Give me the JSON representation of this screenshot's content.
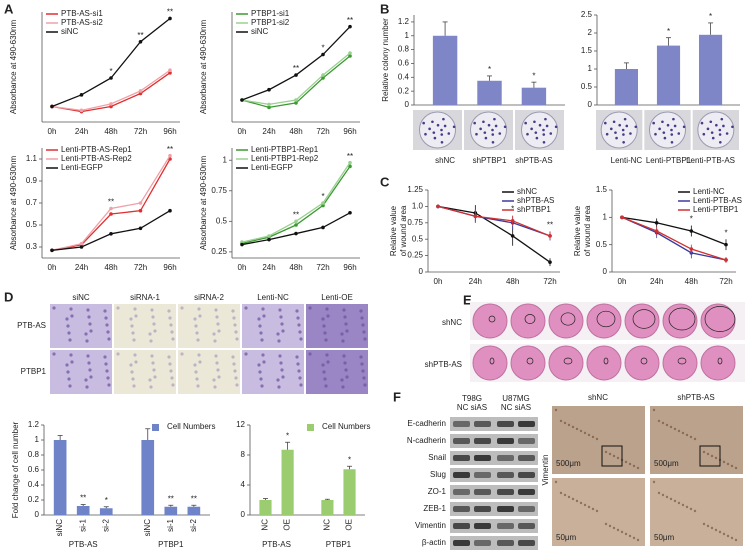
{
  "chart_data": [
    {
      "type": "line",
      "y_label": "Absorbance at 490-630nm",
      "categories": [
        "0h",
        "24h",
        "48h",
        "72h",
        "96h"
      ],
      "ylim": [
        0.15,
        1.0
      ],
      "legend": "upper left",
      "series": [
        {
          "name": "PTB-AS-si1",
          "color": "#e03030",
          "values": [
            0.27,
            0.23,
            0.27,
            0.37,
            0.53
          ]
        },
        {
          "name": "PTB-AS-si2",
          "color": "#f0a0a8",
          "values": [
            0.27,
            0.24,
            0.29,
            0.39,
            0.55
          ]
        },
        {
          "name": "siNC",
          "color": "#111111",
          "values": [
            0.27,
            0.36,
            0.49,
            0.77,
            0.95
          ]
        }
      ],
      "annotations": [
        null,
        null,
        "*",
        "**",
        "**"
      ]
    },
    {
      "type": "line",
      "y_label": "Absorbance at 490-630nm",
      "categories": [
        "0h",
        "24h",
        "48h",
        "72h",
        "96h"
      ],
      "ylim": [
        0.15,
        0.9
      ],
      "legend": "upper left",
      "series": [
        {
          "name": "PTBP1-si1",
          "color": "#3a9a30",
          "values": [
            0.3,
            0.25,
            0.28,
            0.45,
            0.6
          ]
        },
        {
          "name": "PTBP1-si2",
          "color": "#9ad090",
          "values": [
            0.3,
            0.27,
            0.3,
            0.47,
            0.62
          ]
        },
        {
          "name": "siNC",
          "color": "#111111",
          "values": [
            0.3,
            0.37,
            0.47,
            0.61,
            0.8
          ]
        }
      ],
      "annotations": [
        null,
        null,
        "**",
        "*",
        "**"
      ]
    },
    {
      "type": "line",
      "y_label": "Absorbance at 490-630nm",
      "categories": [
        "0h",
        "24h",
        "48h",
        "72h",
        "96h"
      ],
      "ylim": [
        0.2,
        1.2
      ],
      "yticks": [
        0.3,
        0.5,
        0.7,
        0.9,
        1.1
      ],
      "legend": "upper left",
      "series": [
        {
          "name": "Lenti-PTB-AS-Rep1",
          "color": "#e03030",
          "values": [
            0.27,
            0.32,
            0.6,
            0.63,
            1.1
          ]
        },
        {
          "name": "Lenti-PTB-AS-Rep2",
          "color": "#f0a0a8",
          "values": [
            0.27,
            0.33,
            0.65,
            0.7,
            1.13
          ]
        },
        {
          "name": "Lenti-EGFP",
          "color": "#111111",
          "values": [
            0.27,
            0.3,
            0.42,
            0.47,
            0.63
          ]
        }
      ],
      "annotations": [
        null,
        null,
        "**",
        null,
        "**"
      ]
    },
    {
      "type": "line",
      "y_label": "Absorbance at 490-630nm",
      "categories": [
        "0h",
        "24h",
        "48h",
        "72h",
        "96h"
      ],
      "ylim": [
        0.2,
        1.1
      ],
      "yticks": [
        0.25,
        0.5,
        0.75,
        1
      ],
      "legend": "upper left",
      "series": [
        {
          "name": "Lenti-PTBP1-Rep1",
          "color": "#3a9a30",
          "values": [
            0.32,
            0.37,
            0.47,
            0.63,
            0.95
          ]
        },
        {
          "name": "Lenti-PTBP1-Rep2",
          "color": "#9ad090",
          "values": [
            0.33,
            0.38,
            0.5,
            0.65,
            0.98
          ]
        },
        {
          "name": "Lenti-EGFP",
          "color": "#111111",
          "values": [
            0.31,
            0.35,
            0.4,
            0.45,
            0.57
          ]
        }
      ],
      "annotations": [
        null,
        null,
        "**",
        "*",
        "**"
      ]
    },
    {
      "type": "bar",
      "y_label": "Relative colony number",
      "categories": [
        "shNC",
        "shPTBP1",
        "shPTB-AS"
      ],
      "values": [
        1.0,
        0.35,
        0.25
      ],
      "errors": [
        0.2,
        0.07,
        0.08
      ],
      "color": "#7f86c8",
      "ylim": [
        0,
        1.3
      ],
      "yticks": [
        0,
        0.2,
        0.4,
        0.6,
        0.8,
        1,
        1.2
      ],
      "annotations": [
        null,
        "*",
        "*"
      ]
    },
    {
      "type": "bar",
      "categories": [
        "Lenti-NC",
        "Lenti-PTBP1",
        "Lenti-PTB-AS"
      ],
      "values": [
        1.0,
        1.65,
        1.95
      ],
      "errors": [
        0.17,
        0.22,
        0.33
      ],
      "color": "#7f86c8",
      "ylim": [
        0,
        2.5
      ],
      "yticks": [
        0,
        0.5,
        1,
        1.5,
        2,
        2.5
      ],
      "annotations": [
        null,
        "*",
        "*"
      ]
    },
    {
      "type": "line",
      "y_label": [
        "Relative value",
        "of wound area"
      ],
      "categories": [
        "0h",
        "24h",
        "48h",
        "72h"
      ],
      "ylim": [
        0,
        1.25
      ],
      "yticks": [
        0,
        0.25,
        0.5,
        0.75,
        {
          "value": 1,
          "label": "1.0"
        },
        1.25
      ],
      "legend": "upper right",
      "series": [
        {
          "name": "shNC",
          "color": "#111111",
          "values": [
            1.0,
            0.9,
            0.55,
            0.15
          ],
          "errors": [
            0,
            0.12,
            0.15,
            0.06
          ]
        },
        {
          "name": "shPTB-AS",
          "color": "#3a3aa0",
          "values": [
            1.0,
            0.85,
            0.75,
            0.55
          ],
          "errors": [
            0,
            0.1,
            0.1,
            0.07
          ]
        },
        {
          "name": "shPTBP1",
          "color": "#d03030",
          "values": [
            1.0,
            0.85,
            0.78,
            0.55
          ],
          "errors": [
            0,
            0.1,
            0.08,
            0.06
          ]
        }
      ],
      "annotations": [
        null,
        null,
        "*",
        "**"
      ]
    },
    {
      "type": "line",
      "y_label": [
        "Relative value",
        "of wound area"
      ],
      "categories": [
        "0h",
        "24h",
        "48h",
        "72h"
      ],
      "ylim": [
        0,
        1.5
      ],
      "yticks": [
        0,
        0.5,
        1,
        1.5
      ],
      "legend": "upper right",
      "series": [
        {
          "name": "Lenti-NC",
          "color": "#111111",
          "values": [
            1.0,
            0.9,
            0.75,
            0.5
          ],
          "errors": [
            0,
            0.08,
            0.1,
            0.1
          ]
        },
        {
          "name": "Lenti-PTB-AS",
          "color": "#3a3aa0",
          "values": [
            1.0,
            0.72,
            0.35,
            0.22
          ],
          "errors": [
            0,
            0.1,
            0.1,
            0.05
          ]
        },
        {
          "name": "Lenti-PTBP1",
          "color": "#d03030",
          "values": [
            1.0,
            0.75,
            0.42,
            0.22
          ],
          "errors": [
            0,
            0.08,
            0.08,
            0.05
          ]
        }
      ],
      "annotations": [
        null,
        null,
        "*",
        "*"
      ]
    },
    {
      "type": "bar",
      "y_label": "Fold change of cell number",
      "categories": [
        "siNC",
        "si-1",
        "si-2",
        "siNC",
        "si-1",
        "si-2"
      ],
      "group_labels": [
        "PTB-AS",
        "PTBP1"
      ],
      "series": [
        {
          "name": "Cell Numbers",
          "color": "#6f84c8",
          "values": [
            1.0,
            0.12,
            0.09,
            1.0,
            0.11,
            0.11
          ],
          "errors": [
            0.06,
            0.02,
            0.02,
            0.15,
            0.02,
            0.02
          ]
        }
      ],
      "ylim": [
        0,
        1.2
      ],
      "yticks": [
        0,
        0.2,
        0.4,
        0.6,
        0.8,
        1,
        1.2
      ],
      "legend": "upper right",
      "annotations": [
        null,
        "**",
        "*",
        null,
        "**",
        "**"
      ]
    },
    {
      "type": "bar",
      "categories": [
        "NC",
        "OE",
        "NC",
        "OE"
      ],
      "group_labels": [
        "PTB-AS",
        "PTBP1"
      ],
      "series": [
        {
          "name": "Cell Numbers",
          "color": "#9ccc70",
          "values": [
            2.0,
            8.7,
            2.0,
            6.1
          ],
          "errors": [
            0.2,
            1.0,
            0.1,
            0.4
          ]
        }
      ],
      "ylim": [
        0,
        12
      ],
      "yticks": [
        0,
        4,
        8,
        12
      ],
      "legend": "upper right",
      "annotations": [
        null,
        "*",
        null,
        "*"
      ]
    }
  ],
  "panels": {
    "labels": [
      "A",
      "B",
      "C",
      "D",
      "E",
      "F"
    ]
  },
  "d_images": {
    "columns": [
      "siNC",
      "siRNA-1",
      "siRNA-2",
      "Lenti-NC",
      "Lenti-OE"
    ],
    "rows": [
      "PTB-AS",
      "PTBP1"
    ]
  },
  "e_images": {
    "rows": [
      "shNC",
      "shPTB-AS"
    ]
  },
  "f_blot": {
    "cell_lines": [
      "T98G",
      "U87MG"
    ],
    "lanes": [
      "NC siAS",
      "NC siAS"
    ],
    "proteins": [
      "E-cadherin",
      "N-cadherin",
      "Snail",
      "Slug",
      "ZO-1",
      "ZEB-1",
      "Vimentin",
      "β-actin"
    ]
  },
  "f_ihc": {
    "columns": [
      "shNC",
      "shPTB-AS"
    ],
    "row_label": "Vimentin",
    "scale_bars": [
      "500μm",
      "500μm",
      "50μm",
      "50μm"
    ]
  }
}
